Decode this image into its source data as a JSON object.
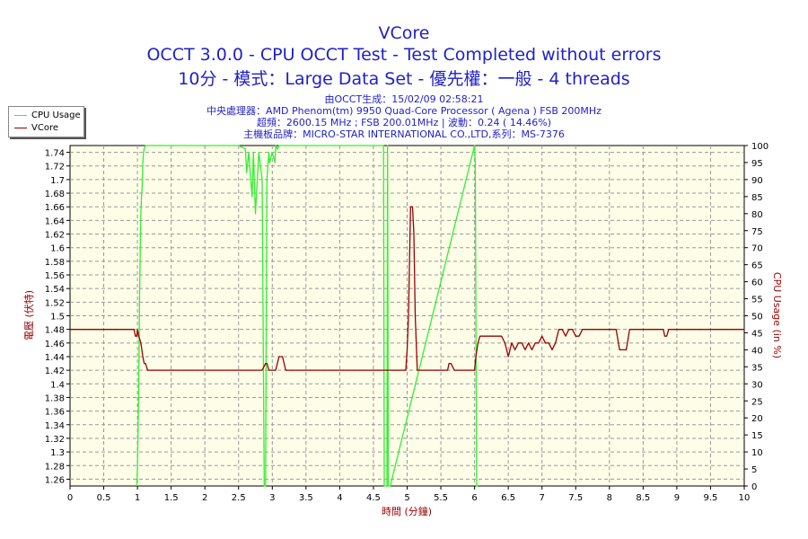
{
  "header": {
    "title": "VCore",
    "subtitle_line1": "OCCT 3.0.0 - CPU OCCT Test - Test Completed without errors",
    "subtitle_line2": "10分 - 模式：Large Data Set - 優先權：一般 - 4 threads",
    "info_line1": "由OCCT生成：15/02/09 02:58:21",
    "info_line2": "中央處理器：AMD Phenom(tm) 9950 Quad-Core Processor ( Agena ) FSB 200MHz",
    "info_line3": "超頻：2600.15 MHz ; FSB 200.01MHz | 波動：0.24 ( 14.46%)",
    "info_line4": "主機板品牌：MICRO-STAR INTERNATIONAL CO.,LTD,系列：MS-7376"
  },
  "colors": {
    "cpu_usage": "#33ee33",
    "vcore": "#990000",
    "plot_bg": "#fdfde8",
    "grid": "#999999",
    "title": "#1f1fc8"
  },
  "chart_data": {
    "type": "line",
    "xlabel": "時間 (分鐘)",
    "ylabel_left": "電壓 (伏特)",
    "ylabel_right": "CPU Usage (in %)",
    "xlim": [
      0,
      10
    ],
    "ylim_left": [
      1.25,
      1.75
    ],
    "ylim_right": [
      0,
      100
    ],
    "x_ticks": [
      "0",
      "0.5",
      "1",
      "1.5",
      "2",
      "2.5",
      "3",
      "3.5",
      "4",
      "4.5",
      "5",
      "5.5",
      "6",
      "6.5",
      "7",
      "7.5",
      "8",
      "8.5",
      "9",
      "9.5",
      "10"
    ],
    "y_left_ticks": [
      "1.26",
      "1.28",
      "1.3",
      "1.32",
      "1.34",
      "1.36",
      "1.38",
      "1.4",
      "1.42",
      "1.44",
      "1.46",
      "1.48",
      "1.5",
      "1.52",
      "1.54",
      "1.56",
      "1.58",
      "1.6",
      "1.62",
      "1.64",
      "1.66",
      "1.68",
      "1.7",
      "1.72",
      "1.74"
    ],
    "y_right_ticks": [
      "0",
      "5",
      "10",
      "15",
      "20",
      "25",
      "30",
      "35",
      "40",
      "45",
      "50",
      "55",
      "60",
      "65",
      "70",
      "75",
      "80",
      "85",
      "90",
      "95",
      "100"
    ],
    "grid": true,
    "legend_position": "top-left",
    "series": [
      {
        "name": "CPU Usage",
        "axis": "right",
        "color": "#33ee33",
        "x": [
          0.99,
          1.0,
          1.02,
          1.03,
          1.05,
          1.06,
          1.07,
          1.08,
          1.09,
          1.1,
          1.12,
          2.5,
          2.6,
          2.62,
          2.65,
          2.7,
          2.72,
          2.75,
          2.8,
          2.85,
          2.88,
          2.89,
          2.9,
          2.92,
          2.95,
          2.96,
          3.0,
          3.04,
          3.05,
          3.08,
          3.1,
          4.65,
          4.66,
          4.7,
          4.71,
          4.72,
          4.75,
          6.0,
          6.01,
          6.02,
          6.03,
          6.05
        ],
        "values": [
          0,
          5,
          30,
          55,
          80,
          85,
          88,
          95,
          98,
          99,
          100,
          100,
          99,
          92,
          98,
          85,
          98,
          80,
          98,
          90,
          0,
          0,
          0,
          90,
          98,
          95,
          98,
          95,
          100,
          99,
          100,
          100,
          0,
          0,
          100,
          0,
          0,
          100,
          95,
          50,
          0,
          0
        ]
      },
      {
        "name": "VCore",
        "axis": "left",
        "color": "#990000",
        "x": [
          0,
          0.95,
          0.97,
          0.99,
          1.0,
          1.02,
          1.05,
          1.08,
          1.1,
          1.12,
          1.15,
          1.2,
          2.85,
          2.9,
          2.92,
          2.95,
          3.0,
          3.05,
          3.1,
          3.15,
          3.2,
          3.25,
          4.98,
          5.0,
          5.02,
          5.05,
          5.08,
          5.1,
          5.12,
          5.15,
          5.2,
          5.6,
          5.62,
          5.65,
          5.7,
          5.72,
          6.0,
          6.02,
          6.05,
          6.08,
          6.1,
          6.4,
          6.45,
          6.5,
          6.55,
          6.6,
          6.65,
          6.7,
          6.75,
          6.8,
          6.85,
          6.9,
          6.95,
          7.0,
          7.05,
          7.1,
          7.15,
          7.2,
          7.25,
          7.3,
          7.35,
          7.4,
          7.45,
          7.5,
          7.55,
          7.6,
          7.65,
          7.7,
          8.1,
          8.15,
          8.2,
          8.25,
          8.3,
          8.35,
          8.4,
          8.45,
          8.5,
          8.8,
          8.82,
          8.85,
          8.88,
          8.9,
          10
        ],
        "values": [
          1.48,
          1.48,
          1.47,
          1.47,
          1.48,
          1.47,
          1.46,
          1.44,
          1.43,
          1.43,
          1.42,
          1.42,
          1.42,
          1.43,
          1.43,
          1.42,
          1.42,
          1.42,
          1.44,
          1.44,
          1.42,
          1.42,
          1.42,
          1.45,
          1.5,
          1.66,
          1.66,
          1.62,
          1.5,
          1.42,
          1.42,
          1.42,
          1.43,
          1.43,
          1.42,
          1.42,
          1.42,
          1.44,
          1.46,
          1.47,
          1.47,
          1.47,
          1.46,
          1.44,
          1.46,
          1.45,
          1.46,
          1.46,
          1.45,
          1.46,
          1.45,
          1.46,
          1.46,
          1.47,
          1.46,
          1.46,
          1.45,
          1.46,
          1.48,
          1.48,
          1.47,
          1.48,
          1.48,
          1.47,
          1.47,
          1.48,
          1.48,
          1.48,
          1.48,
          1.45,
          1.45,
          1.45,
          1.48,
          1.48,
          1.48,
          1.48,
          1.48,
          1.48,
          1.47,
          1.47,
          1.48,
          1.48,
          1.48
        ]
      }
    ]
  }
}
